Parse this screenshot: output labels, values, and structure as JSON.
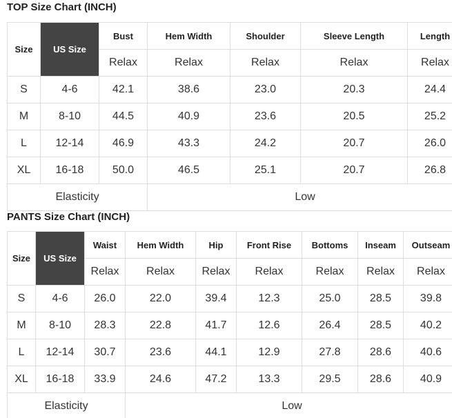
{
  "top": {
    "title": "TOP Size Chart (INCH)",
    "size_header": "Size",
    "us_size_header": "US Size",
    "columns": [
      "Bust",
      "Hem Width",
      "Shoulder",
      "Sleeve Length",
      "Length"
    ],
    "fit": [
      "Relax",
      "Relax",
      "Relax",
      "Relax",
      "Relax"
    ],
    "rows": [
      [
        "S",
        "4-6",
        "42.1",
        "38.6",
        "23.0",
        "20.3",
        "24.4"
      ],
      [
        "M",
        "8-10",
        "44.5",
        "40.9",
        "23.6",
        "20.5",
        "25.2"
      ],
      [
        "L",
        "12-14",
        "46.9",
        "43.3",
        "24.2",
        "20.7",
        "26.0"
      ],
      [
        "XL",
        "16-18",
        "50.0",
        "46.5",
        "25.1",
        "20.7",
        "26.8"
      ]
    ],
    "elasticity_label": "Elasticity",
    "elasticity_value": "Low"
  },
  "pants": {
    "title": "PANTS Size Chart (INCH)",
    "size_header": "Size",
    "us_size_header": "US Size",
    "columns": [
      "Waist",
      "Hem Width",
      "Hip",
      "Front Rise",
      "Bottoms",
      "Inseam",
      "Outseam"
    ],
    "fit": [
      "Relax",
      "Relax",
      "Relax",
      "Relax",
      "Relax",
      "Relax",
      "Relax"
    ],
    "rows": [
      [
        "S",
        "4-6",
        "26.0",
        "22.0",
        "39.4",
        "12.3",
        "25.0",
        "28.5",
        "39.8"
      ],
      [
        "M",
        "8-10",
        "28.3",
        "22.8",
        "41.7",
        "12.6",
        "26.4",
        "28.5",
        "40.2"
      ],
      [
        "L",
        "12-14",
        "30.7",
        "23.6",
        "44.1",
        "12.9",
        "27.8",
        "28.6",
        "40.6"
      ],
      [
        "XL",
        "16-18",
        "33.9",
        "24.6",
        "47.2",
        "13.3",
        "29.5",
        "28.6",
        "40.9"
      ]
    ],
    "elasticity_label": "Elasticity",
    "elasticity_value": "Low"
  }
}
